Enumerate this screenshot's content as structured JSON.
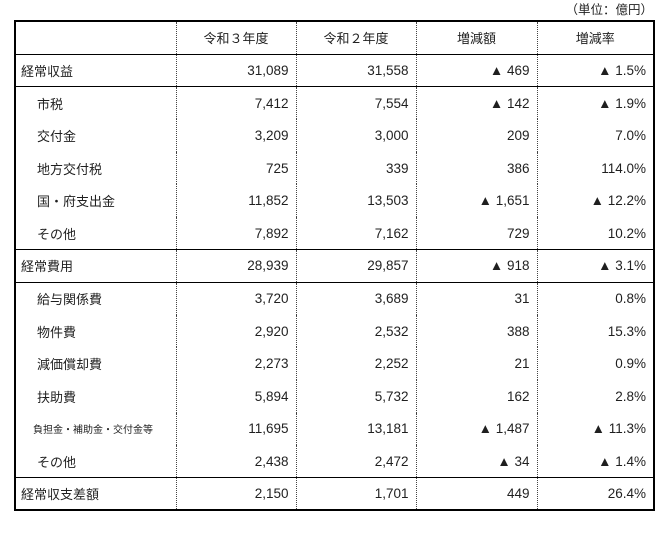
{
  "unit_label": "（単位：億円）",
  "table": {
    "columns": [
      "",
      "令和３年度",
      "令和２年度",
      "増減額",
      "増減率"
    ],
    "rows": [
      {
        "label": "経常収益",
        "level": "section",
        "values": [
          "31,089",
          "31,558",
          "▲ 469",
          "▲ 1.5%"
        ]
      },
      {
        "label": "市税",
        "level": "sub",
        "values": [
          "7,412",
          "7,554",
          "▲ 142",
          "▲ 1.9%"
        ]
      },
      {
        "label": "交付金",
        "level": "sub",
        "values": [
          "3,209",
          "3,000",
          "209",
          "7.0%"
        ]
      },
      {
        "label": "地方交付税",
        "level": "sub",
        "values": [
          "725",
          "339",
          "386",
          "114.0%"
        ]
      },
      {
        "label": "国・府支出金",
        "level": "sub",
        "values": [
          "11,852",
          "13,503",
          "▲ 1,651",
          "▲ 12.2%"
        ]
      },
      {
        "label": "その他",
        "level": "sub",
        "values": [
          "7,892",
          "7,162",
          "729",
          "10.2%"
        ]
      },
      {
        "label": "経常費用",
        "level": "section",
        "values": [
          "28,939",
          "29,857",
          "▲ 918",
          "▲ 3.1%"
        ]
      },
      {
        "label": "給与関係費",
        "level": "sub",
        "values": [
          "3,720",
          "3,689",
          "31",
          "0.8%"
        ]
      },
      {
        "label": "物件費",
        "level": "sub",
        "values": [
          "2,920",
          "2,532",
          "388",
          "15.3%"
        ]
      },
      {
        "label": "減価償却費",
        "level": "sub",
        "values": [
          "2,273",
          "2,252",
          "21",
          "0.9%"
        ]
      },
      {
        "label": "扶助費",
        "level": "sub",
        "values": [
          "5,894",
          "5,732",
          "162",
          "2.8%"
        ]
      },
      {
        "label": "負担金・補助金・交付金等",
        "level": "sub-small",
        "values": [
          "11,695",
          "13,181",
          "▲ 1,487",
          "▲ 11.3%"
        ]
      },
      {
        "label": "その他",
        "level": "sub",
        "values": [
          "2,438",
          "2,472",
          "▲ 34",
          "▲ 1.4%"
        ]
      },
      {
        "label": "経常収支差額",
        "level": "section",
        "values": [
          "2,150",
          "1,701",
          "449",
          "26.4%"
        ]
      }
    ]
  },
  "colors": {
    "border": "#000000",
    "separator_dotted": "#444444",
    "text": "#1f1f1f",
    "background": "#ffffff"
  }
}
